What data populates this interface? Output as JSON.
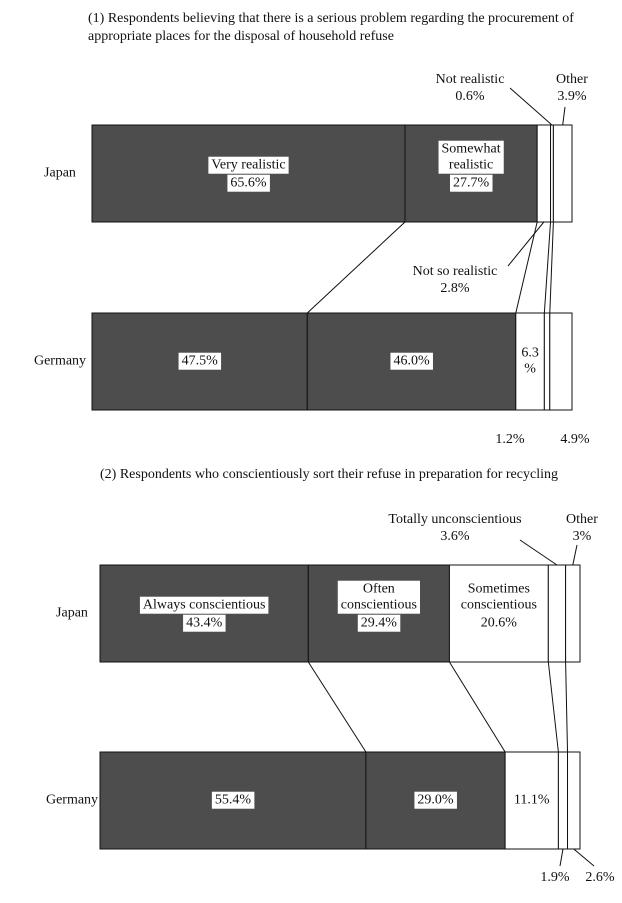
{
  "chart_data": [
    {
      "type": "bar",
      "orientation": "horizontal",
      "stacked": true,
      "title": "(1) Respondents believing that there is a serious problem regarding the procurement of appropriate places for the disposal of household refuse",
      "categories": [
        "Japan",
        "Germany"
      ],
      "series": [
        {
          "name": "Very realistic",
          "color": "#4d4d4d",
          "values": [
            65.6,
            47.5
          ],
          "value_labels": [
            "65.6%",
            "47.5%"
          ]
        },
        {
          "name": "Somewhat realistic",
          "color": "#4d4d4d",
          "values": [
            27.7,
            46.0
          ],
          "value_labels": [
            "27.7%",
            "46.0%"
          ]
        },
        {
          "name": "Not so realistic",
          "color": "#ffffff",
          "values": [
            2.8,
            6.3
          ],
          "value_labels": [
            "2.8%",
            "6.3\n%"
          ]
        },
        {
          "name": "Not realistic",
          "color": "#ffffff",
          "values": [
            0.6,
            1.2
          ],
          "value_labels": [
            "0.6%",
            "1.2%"
          ]
        },
        {
          "name": "Other",
          "color": "#ffffff",
          "values": [
            3.9,
            4.9
          ],
          "value_labels": [
            "3.9%",
            "4.9%"
          ]
        }
      ]
    },
    {
      "type": "bar",
      "orientation": "horizontal",
      "stacked": true,
      "title": "(2) Respondents who conscientiously sort their refuse in preparation for recycling",
      "categories": [
        "Japan",
        "Germany"
      ],
      "series": [
        {
          "name": "Always conscientious",
          "color": "#4d4d4d",
          "values": [
            43.4,
            55.4
          ],
          "value_labels": [
            "43.4%",
            "55.4%"
          ]
        },
        {
          "name": "Often conscientious",
          "color": "#4d4d4d",
          "values": [
            29.4,
            29.0
          ],
          "value_labels": [
            "29.4%",
            "29.0%"
          ]
        },
        {
          "name": "Sometimes conscientious",
          "color": "#ffffff",
          "values": [
            20.6,
            11.1
          ],
          "value_labels": [
            "20.6%",
            "11.1%"
          ]
        },
        {
          "name": "Totally unconscientious",
          "color": "#ffffff",
          "values": [
            3.6,
            1.9
          ],
          "value_labels": [
            "3.6%",
            "1.9%"
          ]
        },
        {
          "name": "Other",
          "color": "#ffffff",
          "values": [
            3,
            2.6
          ],
          "value_labels": [
            "3%",
            "2.6%"
          ]
        }
      ]
    }
  ]
}
